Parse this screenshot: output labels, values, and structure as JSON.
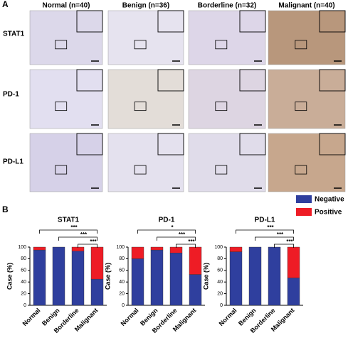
{
  "panels": {
    "a_label": "A",
    "b_label": "B",
    "columns": [
      "Normal (n=40)",
      "Benign (n=36)",
      "Borderline (n=32)",
      "Malignant (n=40)"
    ],
    "rows": [
      "STAT1",
      "PD-1",
      "PD-L1"
    ]
  },
  "chart_data": [
    {
      "type": "stacked-bar",
      "title": "STAT1",
      "y_label": "Case (%)",
      "categories": [
        "Normal",
        "Benign",
        "Borderline",
        "Malignant"
      ],
      "series": [
        {
          "name": "Negative",
          "color": "#2f3f9e",
          "values": [
            95,
            100,
            93,
            45
          ]
        },
        {
          "name": "Positive",
          "color": "#ee1c25",
          "values": [
            5,
            0,
            7,
            55
          ]
        }
      ],
      "ylim": [
        0,
        100
      ],
      "yticks": [
        0,
        20,
        40,
        60,
        80,
        100
      ],
      "annotations": [
        "***",
        "***",
        "***"
      ]
    },
    {
      "type": "stacked-bar",
      "title": "PD-1",
      "y_label": "Case (%)",
      "categories": [
        "Normal",
        "Benign",
        "Borderline",
        "Malignant"
      ],
      "series": [
        {
          "name": "Negative",
          "color": "#2f3f9e",
          "values": [
            80,
            95,
            90,
            53
          ]
        },
        {
          "name": "Positive",
          "color": "#ee1c25",
          "values": [
            20,
            5,
            10,
            47
          ]
        }
      ],
      "ylim": [
        0,
        100
      ],
      "yticks": [
        0,
        20,
        40,
        60,
        80,
        100
      ],
      "annotations": [
        "*",
        "***",
        "***"
      ]
    },
    {
      "type": "stacked-bar",
      "title": "PD-L1",
      "y_label": "Case (%)",
      "categories": [
        "Normal",
        "Benign",
        "Borderline",
        "Malignant"
      ],
      "series": [
        {
          "name": "Negative",
          "color": "#2f3f9e",
          "values": [
            92,
            100,
            100,
            47
          ]
        },
        {
          "name": "Positive",
          "color": "#ee1c25",
          "values": [
            8,
            0,
            0,
            53
          ]
        }
      ],
      "ylim": [
        0,
        100
      ],
      "yticks": [
        0,
        20,
        40,
        60,
        80,
        100
      ],
      "annotations": [
        "***",
        "***",
        "***"
      ]
    }
  ]
}
